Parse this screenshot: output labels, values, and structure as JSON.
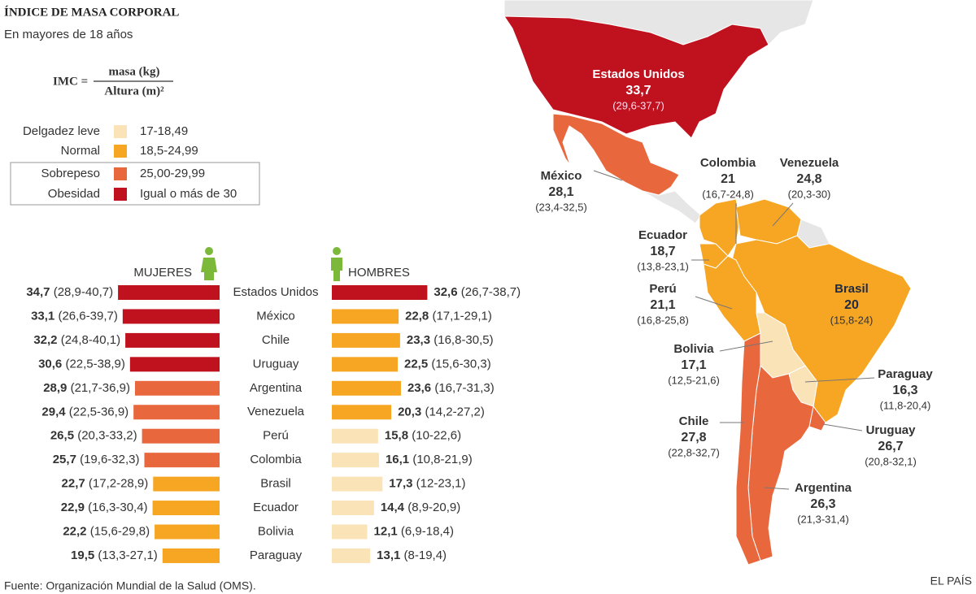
{
  "header": {
    "title": "ÍNDICE DE MASA CORPORAL",
    "subtitle": "En mayores de 18 años"
  },
  "formula": {
    "left": "IMC =",
    "numerator": "masa (kg)",
    "denominator": "Altura (m)²"
  },
  "legend": {
    "items": [
      {
        "label": "Delgadez leve",
        "range": "17-18,49",
        "color": "#fbe3b8"
      },
      {
        "label": "Normal",
        "range": "18,5-24,99",
        "color": "#f6a623"
      },
      {
        "label": "Sobrepeso",
        "range": "25,00-29,99",
        "color": "#e8673d"
      },
      {
        "label": "Obesidad",
        "range": "Igual o más de 30",
        "color": "#c0111f"
      }
    ]
  },
  "chart_data": {
    "type": "bar",
    "orientation": "butterfly",
    "categories": [
      "Estados Unidos",
      "México",
      "Chile",
      "Uruguay",
      "Argentina",
      "Venezuela",
      "Perú",
      "Colombia",
      "Brasil",
      "Ecuador",
      "Bolivia",
      "Paraguay"
    ],
    "series": [
      {
        "name": "MUJERES",
        "values": [
          34.7,
          33.1,
          32.2,
          30.6,
          28.9,
          29.4,
          26.5,
          25.7,
          22.7,
          22.9,
          22.2,
          19.5
        ],
        "value_labels": [
          "34,7",
          "33,1",
          "32,2",
          "30,6",
          "28,9",
          "29,4",
          "26,5",
          "25,7",
          "22,7",
          "22,9",
          "22,2",
          "19,5"
        ],
        "ranges": [
          "(28,9-40,7)",
          "(26,6-39,7)",
          "(24,8-40,1)",
          "(22,5-38,9)",
          "(21,7-36,9)",
          "(22,5-36,9)",
          "(20,3-33,2)",
          "(19,6-32,3)",
          "(17,2-28,9)",
          "(16,3-30,4)",
          "(15,6-29,8)",
          "(13,3-27,1)"
        ],
        "colors": [
          "#c0111f",
          "#c0111f",
          "#c0111f",
          "#c0111f",
          "#e8673d",
          "#e8673d",
          "#e8673d",
          "#e8673d",
          "#f6a623",
          "#f6a623",
          "#f6a623",
          "#f6a623"
        ]
      },
      {
        "name": "HOMBRES",
        "values": [
          32.6,
          22.8,
          23.3,
          22.5,
          23.6,
          20.3,
          15.8,
          16.1,
          17.3,
          14.4,
          12.1,
          13.1
        ],
        "value_labels": [
          "32,6",
          "22,8",
          "23,3",
          "22,5",
          "23,6",
          "20,3",
          "15,8",
          "16,1",
          "17,3",
          "14,4",
          "12,1",
          "13,1"
        ],
        "ranges": [
          "(26,7-38,7)",
          "(17,1-29,1)",
          "(16,8-30,5)",
          "(15,6-30,3)",
          "(16,7-31,3)",
          "(14,2-27,2)",
          "(10-22,6)",
          "(10,8-21,9)",
          "(12-23,1)",
          "(8,9-20,9)",
          "(6,9-18,4)",
          "(8-19,4)"
        ],
        "colors": [
          "#c0111f",
          "#f6a623",
          "#f6a623",
          "#f6a623",
          "#f6a623",
          "#f6a623",
          "#fbe3b8",
          "#fbe3b8",
          "#fbe3b8",
          "#fbe3b8",
          "#fbe3b8",
          "#fbe3b8"
        ]
      }
    ]
  },
  "map": {
    "labels": [
      {
        "name": "Estados Unidos",
        "value": "33,7",
        "range": "(29,6-37,7)"
      },
      {
        "name": "México",
        "value": "28,1",
        "range": "(23,4-32,5)"
      },
      {
        "name": "Colombia",
        "value": "21",
        "range": "(16,7-24,8)"
      },
      {
        "name": "Venezuela",
        "value": "24,8",
        "range": "(20,3-30)"
      },
      {
        "name": "Ecuador",
        "value": "18,7",
        "range": "(13,8-23,1)"
      },
      {
        "name": "Perú",
        "value": "21,1",
        "range": "(16,8-25,8)"
      },
      {
        "name": "Brasil",
        "value": "20",
        "range": "(15,8-24)"
      },
      {
        "name": "Bolivia",
        "value": "17,1",
        "range": "(12,5-21,6)"
      },
      {
        "name": "Paraguay",
        "value": "16,3",
        "range": "(11,8-20,4)"
      },
      {
        "name": "Chile",
        "value": "27,8",
        "range": "(22,8-32,7)"
      },
      {
        "name": "Uruguay",
        "value": "26,7",
        "range": "(20,8-32,1)"
      },
      {
        "name": "Argentina",
        "value": "26,3",
        "range": "(21,3-31,4)"
      }
    ]
  },
  "footer": {
    "source": "Fuente: Organización Mundial de la Salud (OMS).",
    "brand": "EL PAÍS"
  }
}
